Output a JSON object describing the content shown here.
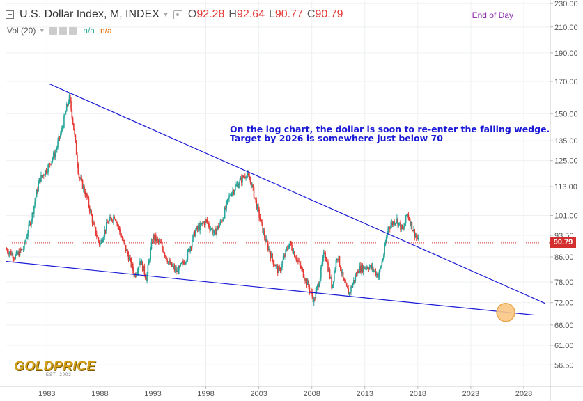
{
  "header": {
    "symbol": "U.S. Dollar Index, M, INDEX",
    "o_label": "O",
    "o_value": "92.28",
    "h_label": "H",
    "h_value": "92.64",
    "l_label": "L",
    "l_value": "90.77",
    "c_label": "C",
    "c_value": "90.79",
    "data_mode": "End of Day",
    "volume_label": "Vol (20)",
    "vol_val_1": "n/a",
    "vol_val_2": "n/a"
  },
  "annotation": "On the log chart, the dollar is soon to re-enter the falling wedge.\nTarget by 2026 is somewhere just below 70",
  "last_price_tag": "90.79",
  "logo": {
    "text": "GOLDPRICE",
    "sub": "EST. 2002"
  },
  "colors": {
    "up_candle": "#26a69a",
    "down_candle": "#e53935",
    "trendline": "#1a1ad6",
    "price_line": "#d32f2f",
    "target_marker": "#f9c784",
    "axis_text": "#555555"
  },
  "chart_data": {
    "type": "line",
    "log_scale": true,
    "grid": true,
    "x_ticks": [
      "1983",
      "1988",
      "1993",
      "1998",
      "2003",
      "2008",
      "2013",
      "2018",
      "2023",
      "2028"
    ],
    "y_ticks": [
      "230.00",
      "210.00",
      "190.00",
      "170.00",
      "150.00",
      "135.00",
      "125.00",
      "113.00",
      "101.00",
      "93.50",
      "86.00",
      "78.00",
      "72.00",
      "66.00",
      "61.00",
      "56.50"
    ],
    "xlim": [
      1979.1,
      2030.5
    ],
    "ylim": [
      52,
      232
    ],
    "series": [
      {
        "points": [
          [
            1979.2,
            88.5
          ],
          [
            1980.0,
            86.0
          ],
          [
            1980.8,
            89.0
          ],
          [
            1981.6,
            101.0
          ],
          [
            1982.3,
            116.0
          ],
          [
            1983.0,
            121.0
          ],
          [
            1983.8,
            129.0
          ],
          [
            1984.5,
            143.0
          ],
          [
            1985.1,
            160.0
          ],
          [
            1985.4,
            148.0
          ],
          [
            1986.0,
            118.0
          ],
          [
            1986.8,
            108.0
          ],
          [
            1987.4,
            97.0
          ],
          [
            1988.0,
            90.0
          ],
          [
            1988.7,
            98.0
          ],
          [
            1989.4,
            101.0
          ],
          [
            1990.1,
            92.0
          ],
          [
            1990.8,
            85.0
          ],
          [
            1991.3,
            80.0
          ],
          [
            1991.8,
            85.0
          ],
          [
            1992.4,
            79.0
          ],
          [
            1993.0,
            93.0
          ],
          [
            1993.8,
            90.0
          ],
          [
            1994.5,
            84.0
          ],
          [
            1995.3,
            81.0
          ],
          [
            1996.2,
            86.0
          ],
          [
            1997.0,
            95.0
          ],
          [
            1998.0,
            99.0
          ],
          [
            1998.8,
            94.0
          ],
          [
            1999.6,
            100.0
          ],
          [
            2000.3,
            110.0
          ],
          [
            2001.2,
            115.0
          ],
          [
            2001.8,
            119.0
          ],
          [
            2002.3,
            114.0
          ],
          [
            2002.9,
            103.0
          ],
          [
            2003.6,
            92.0
          ],
          [
            2004.3,
            85.0
          ],
          [
            2004.9,
            81.0
          ],
          [
            2005.9,
            91.0
          ],
          [
            2006.6,
            85.0
          ],
          [
            2007.4,
            79.0
          ],
          [
            2008.2,
            72.5
          ],
          [
            2008.8,
            80.0
          ],
          [
            2009.2,
            88.0
          ],
          [
            2009.9,
            76.5
          ],
          [
            2010.4,
            87.0
          ],
          [
            2011.0,
            78.0
          ],
          [
            2011.5,
            74.5
          ],
          [
            2012.4,
            82.0
          ],
          [
            2013.4,
            83.0
          ],
          [
            2014.3,
            80.0
          ],
          [
            2014.8,
            87.0
          ],
          [
            2015.2,
            96.5
          ],
          [
            2016.0,
            99.5
          ],
          [
            2016.6,
            95.0
          ],
          [
            2017.0,
            102.0
          ],
          [
            2017.5,
            96.0
          ],
          [
            2017.9,
            92.5
          ],
          [
            2018.1,
            90.79
          ]
        ]
      }
    ],
    "trendlines": [
      {
        "from": [
          1983.2,
          168.5
        ],
        "to": [
          2030.0,
          71.8
        ]
      },
      {
        "from": [
          1979.1,
          84.5
        ],
        "to": [
          2029.0,
          68.6
        ]
      }
    ],
    "horizontal_line": 90.79,
    "target_marker": {
      "x": 2026.3,
      "y": 69.3
    }
  }
}
